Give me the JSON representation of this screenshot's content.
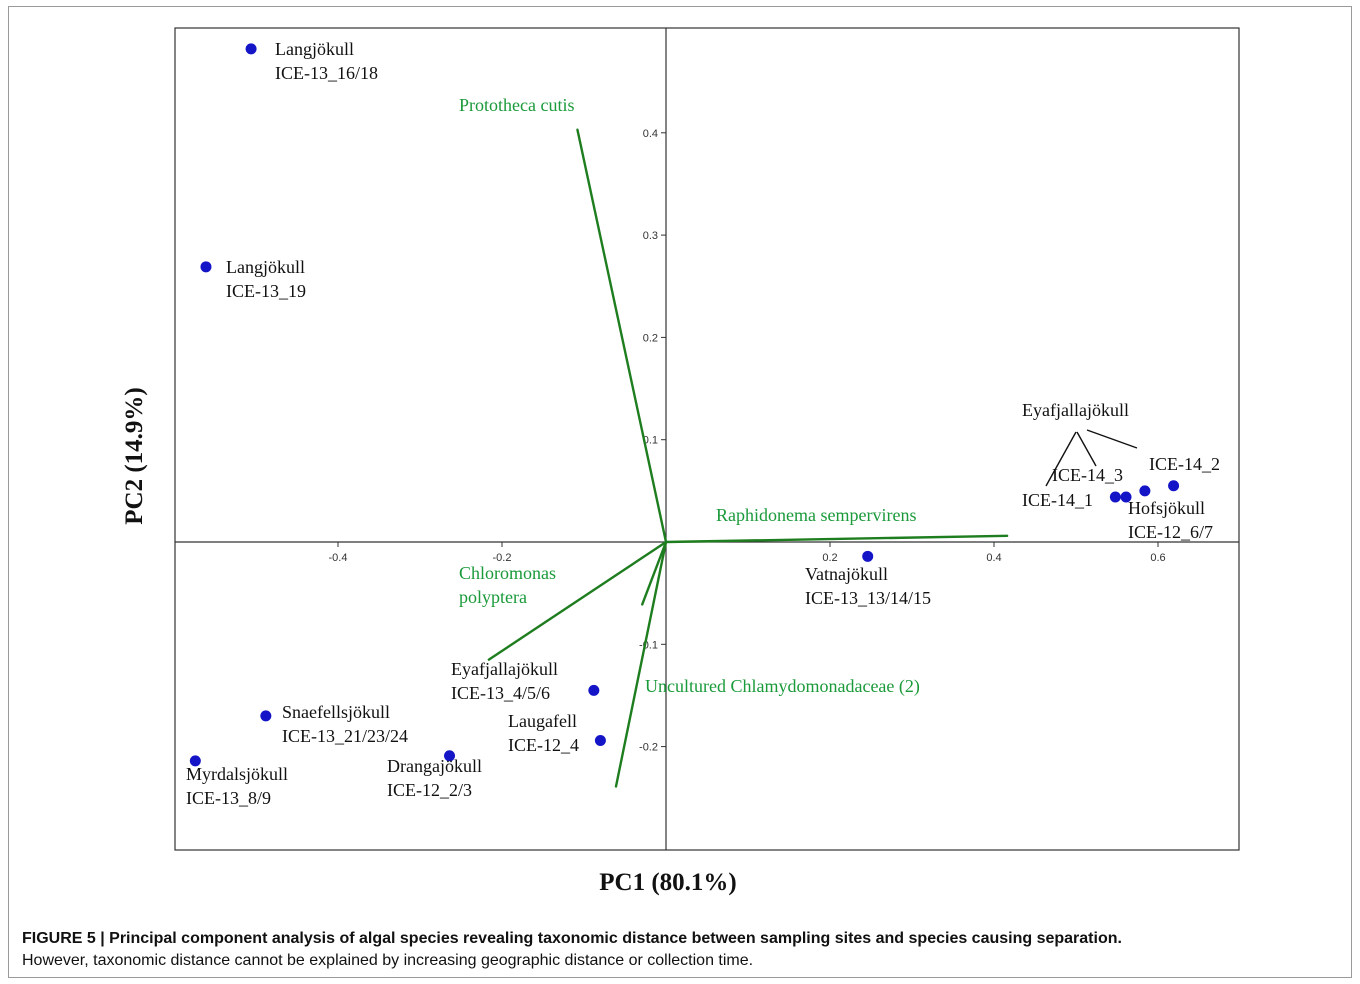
{
  "chart_data": {
    "type": "scatter",
    "xlabel": "PC1 (80.1%)",
    "ylabel": "PC2 (14.9%)",
    "xlim": [
      -0.6,
      0.7
    ],
    "ylim": [
      -0.3,
      0.5
    ],
    "x_ticks": [
      -0.4,
      -0.2,
      0.2,
      0.4,
      0.6
    ],
    "x_tick_labels": [
      "-0.4",
      "-0.2",
      "0.2",
      "0.4",
      "0.6"
    ],
    "y_ticks": [
      0.4,
      0.3,
      0.2,
      0.1,
      -0.1,
      -0.2
    ],
    "y_tick_labels": [
      "0.4",
      "0.3",
      "0.2",
      "0.1",
      "-0.1",
      "-0.2"
    ],
    "point_color": "#1515c8",
    "loading_color": "#1e7d1e",
    "species_label_color": "#1a9a3a",
    "sites": [
      {
        "site": "Langjökull",
        "sample": "ICE-13_16/18",
        "x": -0.506,
        "y": 0.482
      },
      {
        "site": "Langjökull",
        "sample": "ICE-13_19",
        "x": -0.561,
        "y": 0.269
      },
      {
        "site": "Vatnajökull",
        "sample": "ICE-13_13/14/15",
        "x": 0.246,
        "y": -0.014
      },
      {
        "site": "Eyafjallajökull",
        "sample": "ICE-13_4/5/6",
        "x": -0.088,
        "y": -0.145
      },
      {
        "site": "Laugafell",
        "sample": "ICE-12_4",
        "x": -0.08,
        "y": -0.194
      },
      {
        "site": "Snaefellsjökull",
        "sample": "ICE-13_21/23/24",
        "x": -0.488,
        "y": -0.17
      },
      {
        "site": "Drangajökull",
        "sample": "ICE-12_2/3",
        "x": -0.264,
        "y": -0.209
      },
      {
        "site": "Myrdalsjökull",
        "sample": "ICE-13_8/9",
        "x": -0.574,
        "y": -0.214
      },
      {
        "site": "Eyafjallajökull",
        "sample": "ICE-14_1",
        "x": 0.548,
        "y": 0.044
      },
      {
        "site": "Eyafjallajökull",
        "sample": "ICE-14_3",
        "x": 0.561,
        "y": 0.044
      },
      {
        "site": "Eyafjallajökull",
        "sample": "ICE-14_2",
        "x": 0.619,
        "y": 0.055
      },
      {
        "site": "Hofsjökull",
        "sample": "ICE-12_6/7",
        "x": 0.584,
        "y": 0.05
      }
    ],
    "loadings": [
      {
        "name": "Prototheca cutis",
        "x": -0.108,
        "y": 0.403
      },
      {
        "name": "Raphidonema sempervirens",
        "x": 0.416,
        "y": 0.006
      },
      {
        "name": "Chloromonas polyptera",
        "x": -0.216,
        "y": -0.115
      },
      {
        "name": "Uncultured Chlamydomonadaceae (2)",
        "x": -0.061,
        "y": -0.239
      },
      {
        "name": "Uncultured Chlamydomonadaceae (2)",
        "x": -0.029,
        "y": -0.061
      }
    ],
    "annotations": {
      "group_label": "Eyafjallajökull"
    }
  },
  "labels": {
    "langjokull_a_site": "Langjökull",
    "langjokull_a_sample": "ICE-13_16/18",
    "langjokull_b_site": "Langjökull",
    "langjokull_b_sample": "ICE-13_19",
    "prototheca": "Prototheca cutis",
    "eyafjalla_group": "Eyafjallajökull",
    "ice14_3": "ICE-14_3",
    "ice14_2": "ICE-14_2",
    "ice14_1": "ICE-14_1",
    "hofs_site": "Hofsjökull",
    "hofs_sample": "ICE-12_6/7",
    "raphidonema": "Raphidonema sempervirens",
    "chloromonas_1": "Chloromonas",
    "chloromonas_2": "polyptera",
    "vatna_site": "Vatnajökull",
    "vatna_sample": "ICE-13_13/14/15",
    "eyafjalla13_site": "Eyafjallajökull",
    "eyafjalla13_sample": "ICE-13_4/5/6",
    "uncultured": "Uncultured Chlamydomonadaceae (2)",
    "laugafell_site": "Laugafell",
    "laugafell_sample": "ICE-12_4",
    "snaefells_site": "Snaefellsjökull",
    "snaefells_sample": "ICE-13_21/23/24",
    "dranga_site": "Drangajökull",
    "dranga_sample": "ICE-12_2/3",
    "myrdals_site": "Myrdalsjökull",
    "myrdals_sample": "ICE-13_8/9"
  },
  "caption": {
    "title": "FIGURE 5 | Principal component analysis of algal species revealing taxonomic distance between sampling sites and species causing separation.",
    "body": "However, taxonomic distance cannot be explained by increasing geographic distance or collection time."
  }
}
